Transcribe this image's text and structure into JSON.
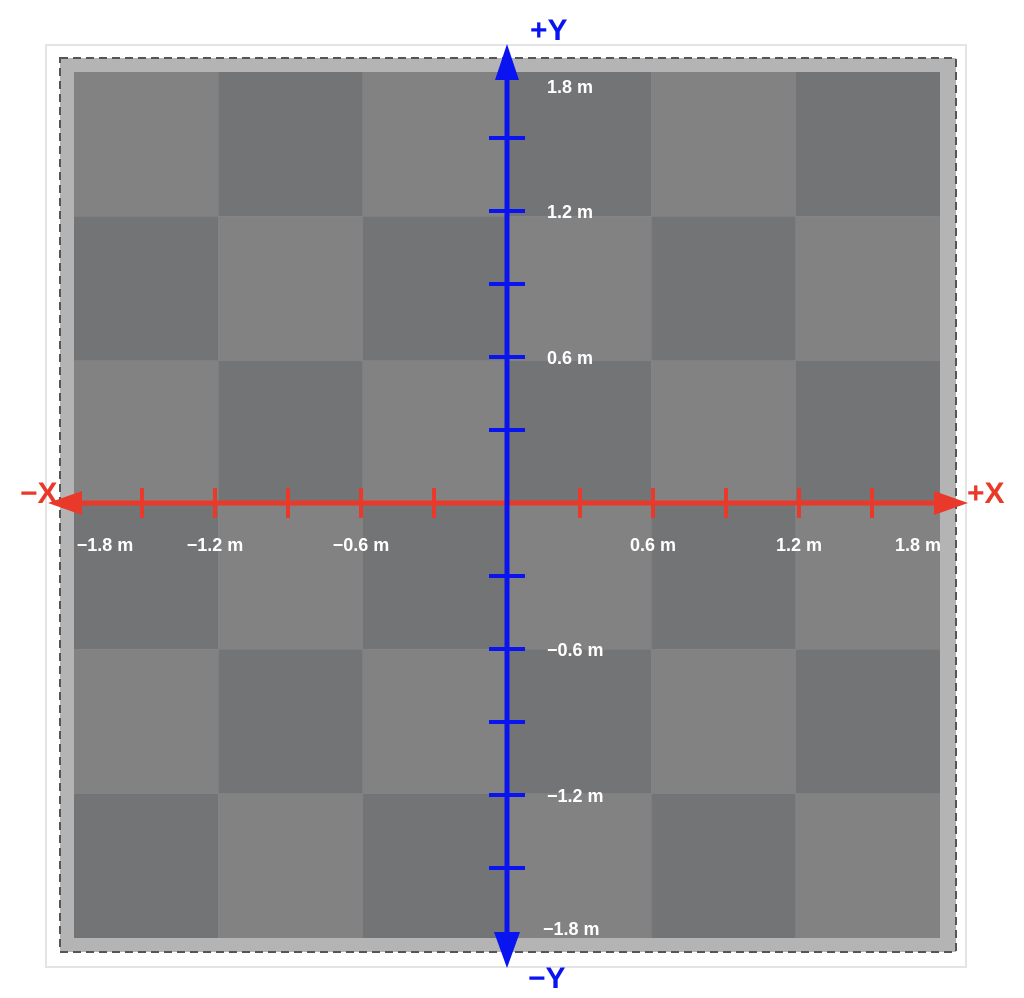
{
  "colors": {
    "x_axis": "#e8392a",
    "y_axis": "#0a14f0",
    "tile_light": "#828282",
    "tile_dark": "#727476",
    "frame": "#b4b4b4",
    "label_text": "#ffffff"
  },
  "floor": {
    "tiles_per_side": 6
  },
  "x_axis": {
    "neg_label": "−X",
    "pos_label": "+X",
    "ticks": [
      -1.5,
      -1.2,
      -0.9,
      -0.6,
      -0.3,
      0.3,
      0.6,
      0.9,
      1.2,
      1.5
    ],
    "tick_labels": [
      {
        "value": -1.8,
        "text": "−1.8 m"
      },
      {
        "value": -1.2,
        "text": "−1.2 m"
      },
      {
        "value": -0.6,
        "text": "−0.6 m"
      },
      {
        "value": 0.6,
        "text": "0.6 m"
      },
      {
        "value": 1.2,
        "text": "1.2 m"
      },
      {
        "value": 1.8,
        "text": "1.8 m"
      }
    ]
  },
  "y_axis": {
    "neg_label": "−Y",
    "pos_label": "+Y",
    "ticks": [
      -1.5,
      -1.2,
      -0.9,
      -0.6,
      -0.3,
      0.3,
      0.6,
      0.9,
      1.2,
      1.5
    ],
    "tick_labels": [
      {
        "value": 1.8,
        "text": "1.8 m"
      },
      {
        "value": 1.2,
        "text": "1.2 m"
      },
      {
        "value": 0.6,
        "text": "0.6 m"
      },
      {
        "value": -0.6,
        "text": "−0.6 m"
      },
      {
        "value": -1.2,
        "text": "−1.2 m"
      },
      {
        "value": -1.8,
        "text": "−1.8 m"
      }
    ]
  }
}
